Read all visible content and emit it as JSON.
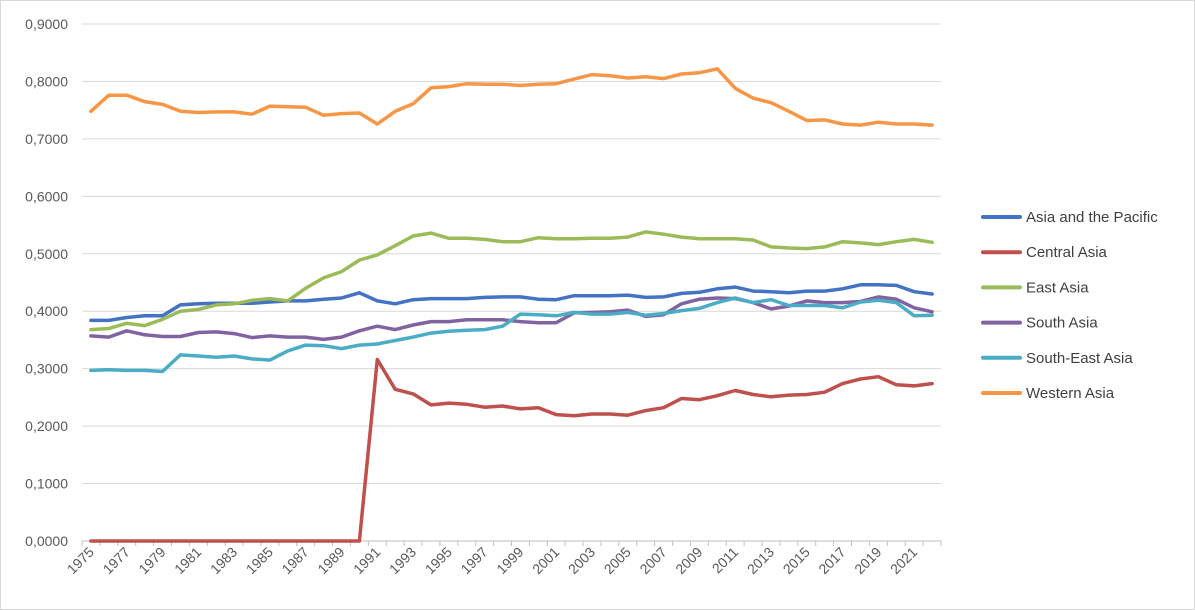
{
  "chart_data": {
    "type": "line",
    "title": "",
    "xlabel": "",
    "ylabel": "",
    "ylim": [
      0,
      0.9
    ],
    "y_ticks": [
      "0,0000",
      "0,1000",
      "0,2000",
      "0,3000",
      "0,4000",
      "0,5000",
      "0,6000",
      "0,7000",
      "0,8000",
      "0,9000"
    ],
    "x_tick_labels": [
      "1975",
      "1977",
      "1979",
      "1981",
      "1983",
      "1985",
      "1987",
      "1989",
      "1991",
      "1993",
      "1995",
      "1997",
      "1999",
      "2001",
      "2003",
      "2005",
      "2007",
      "2009",
      "2011",
      "2013",
      "2015",
      "2017",
      "2019",
      "2021"
    ],
    "grid": "horizontal",
    "legend_position": "right",
    "x": [
      1975,
      1976,
      1977,
      1978,
      1979,
      1980,
      1981,
      1982,
      1983,
      1984,
      1985,
      1986,
      1987,
      1988,
      1989,
      1990,
      1991,
      1992,
      1993,
      1994,
      1995,
      1996,
      1997,
      1998,
      1999,
      2000,
      2001,
      2002,
      2003,
      2004,
      2005,
      2006,
      2007,
      2008,
      2009,
      2010,
      2011,
      2012,
      2013,
      2014,
      2015,
      2016,
      2017,
      2018,
      2019,
      2020,
      2021,
      2022
    ],
    "series": [
      {
        "name": "Asia and the Pacific",
        "color": "#4472c4",
        "values": [
          0.384,
          0.384,
          0.389,
          0.392,
          0.392,
          0.411,
          0.413,
          0.414,
          0.414,
          0.414,
          0.416,
          0.418,
          0.418,
          0.421,
          0.423,
          0.432,
          0.418,
          0.413,
          0.42,
          0.422,
          0.422,
          0.422,
          0.424,
          0.425,
          0.425,
          0.421,
          0.42,
          0.427,
          0.427,
          0.427,
          0.428,
          0.424,
          0.425,
          0.431,
          0.433,
          0.439,
          0.442,
          0.435,
          0.434,
          0.432,
          0.435,
          0.435,
          0.439,
          0.446,
          0.446,
          0.445,
          0.434,
          0.43
        ]
      },
      {
        "name": "Central Asia",
        "color": "#c0504d",
        "values": [
          0,
          0,
          0,
          0,
          0,
          0,
          0,
          0,
          0,
          0,
          0,
          0,
          0,
          0,
          0,
          0,
          0.316,
          0.264,
          0.256,
          0.237,
          0.24,
          0.238,
          0.233,
          0.235,
          0.23,
          0.232,
          0.22,
          0.218,
          0.221,
          0.221,
          0.219,
          0.227,
          0.232,
          0.248,
          0.246,
          0.253,
          0.262,
          0.255,
          0.251,
          0.254,
          0.255,
          0.259,
          0.274,
          0.282,
          0.286,
          0.272,
          0.27,
          0.274
        ]
      },
      {
        "name": "East Asia",
        "color": "#9bbb59",
        "values": [
          0.368,
          0.37,
          0.379,
          0.375,
          0.386,
          0.4,
          0.403,
          0.411,
          0.413,
          0.419,
          0.422,
          0.418,
          0.44,
          0.458,
          0.469,
          0.489,
          0.498,
          0.514,
          0.531,
          0.536,
          0.527,
          0.527,
          0.525,
          0.521,
          0.521,
          0.528,
          0.526,
          0.526,
          0.527,
          0.527,
          0.529,
          0.538,
          0.534,
          0.529,
          0.526,
          0.526,
          0.526,
          0.524,
          0.512,
          0.51,
          0.509,
          0.512,
          0.521,
          0.519,
          0.516,
          0.521,
          0.525,
          0.52
        ]
      },
      {
        "name": "South Asia",
        "color": "#8064a2",
        "values": [
          0.357,
          0.355,
          0.366,
          0.359,
          0.356,
          0.356,
          0.363,
          0.364,
          0.361,
          0.354,
          0.357,
          0.355,
          0.355,
          0.351,
          0.355,
          0.366,
          0.374,
          0.368,
          0.376,
          0.382,
          0.382,
          0.385,
          0.385,
          0.385,
          0.382,
          0.38,
          0.38,
          0.397,
          0.398,
          0.399,
          0.402,
          0.391,
          0.394,
          0.413,
          0.421,
          0.423,
          0.422,
          0.415,
          0.404,
          0.409,
          0.418,
          0.415,
          0.415,
          0.417,
          0.425,
          0.421,
          0.406,
          0.399
        ]
      },
      {
        "name": "South-East Asia",
        "color": "#4bacc6",
        "values": [
          0.297,
          0.298,
          0.297,
          0.297,
          0.295,
          0.324,
          0.322,
          0.32,
          0.322,
          0.317,
          0.315,
          0.331,
          0.341,
          0.34,
          0.335,
          0.341,
          0.343,
          0.349,
          0.355,
          0.362,
          0.365,
          0.367,
          0.368,
          0.374,
          0.395,
          0.394,
          0.392,
          0.398,
          0.395,
          0.395,
          0.398,
          0.393,
          0.396,
          0.401,
          0.405,
          0.415,
          0.423,
          0.415,
          0.42,
          0.41,
          0.41,
          0.41,
          0.406,
          0.416,
          0.419,
          0.415,
          0.392,
          0.393
        ]
      },
      {
        "name": "Western Asia",
        "color": "#f79646",
        "values": [
          0.748,
          0.776,
          0.776,
          0.765,
          0.76,
          0.748,
          0.746,
          0.747,
          0.747,
          0.743,
          0.757,
          0.756,
          0.755,
          0.741,
          0.744,
          0.745,
          0.726,
          0.748,
          0.761,
          0.789,
          0.791,
          0.796,
          0.795,
          0.795,
          0.793,
          0.795,
          0.796,
          0.804,
          0.812,
          0.81,
          0.806,
          0.808,
          0.805,
          0.813,
          0.815,
          0.822,
          0.788,
          0.771,
          0.763,
          0.748,
          0.732,
          0.733,
          0.726,
          0.724,
          0.729,
          0.726,
          0.726,
          0.724
        ]
      }
    ]
  }
}
